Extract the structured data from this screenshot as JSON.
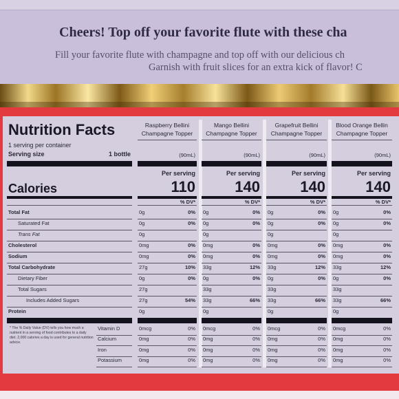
{
  "headline": "Cheers! Top off your favorite flute with these cha",
  "subline1": "Fill your favorite flute with champagne and top off with our delicious ch",
  "subline2": "Garnish with fruit slices for an extra kick of flavor! C",
  "label": {
    "title": "Nutrition Facts",
    "servings_per_container": "1 serving per container",
    "serving_size_label": "Serving size",
    "serving_size_value": "1 bottle",
    "calories_label": "Calories",
    "per_serving": "Per serving",
    "dv_header": "% DV*",
    "nutrients": [
      {
        "name": "Total Fat",
        "bold": true
      },
      {
        "name": "Saturated Fat",
        "bold": false
      },
      {
        "name": "Trans Fat",
        "bold": false
      },
      {
        "name": "Cholesterol",
        "bold": true
      },
      {
        "name": "Sodium",
        "bold": true
      },
      {
        "name": "Total Carbohydrate",
        "bold": true
      },
      {
        "name": "Dietary Fiber",
        "bold": false
      },
      {
        "name": "Total Sugars",
        "bold": false
      },
      {
        "name": "Includes Added Sugars",
        "bold": false
      },
      {
        "name": "Protein",
        "bold": true
      }
    ],
    "footnote": "* The % Daily Value (DV) tells you how much a nutrient in a serving of food contributes to a daily diet. 2,000 calories a day is used for general nutrition advice.",
    "vitamins": [
      "Vitamin D",
      "Calcium",
      "Iron",
      "Potassium"
    ],
    "products": [
      {
        "name1": "Raspberry Bellini",
        "name2": "Champagne Topper",
        "volume": "(90mL)",
        "calories": "110",
        "amounts": [
          "0g",
          "0g",
          "0g",
          "0mg",
          "0mg",
          "27g",
          "0g",
          "27g",
          "27g",
          "0g"
        ],
        "dvs": [
          "0%",
          "0%",
          "",
          "0%",
          "0%",
          "10%",
          "0%",
          "",
          "54%",
          ""
        ],
        "vit_amounts": [
          "0mcg",
          "0mg",
          "0mg",
          "0mg"
        ],
        "vit_dvs": [
          "0%",
          "0%",
          "0%",
          "0%"
        ]
      },
      {
        "name1": "Mango Bellini",
        "name2": "Champagne Topper",
        "volume": "(90mL)",
        "calories": "140",
        "amounts": [
          "0g",
          "0g",
          "0g",
          "0mg",
          "0mg",
          "33g",
          "0g",
          "33g",
          "33g",
          "0g"
        ],
        "dvs": [
          "0%",
          "0%",
          "",
          "0%",
          "0%",
          "12%",
          "0%",
          "",
          "66%",
          ""
        ],
        "vit_amounts": [
          "0mcg",
          "0mg",
          "0mg",
          "0mg"
        ],
        "vit_dvs": [
          "0%",
          "0%",
          "0%",
          "0%"
        ]
      },
      {
        "name1": "Grapefruit Bellini",
        "name2": "Champagne Topper",
        "volume": "(90mL)",
        "calories": "140",
        "amounts": [
          "0g",
          "0g",
          "0g",
          "0mg",
          "0mg",
          "33g",
          "0g",
          "33g",
          "33g",
          "0g"
        ],
        "dvs": [
          "0%",
          "0%",
          "",
          "0%",
          "0%",
          "12%",
          "0%",
          "",
          "66%",
          ""
        ],
        "vit_amounts": [
          "0mcg",
          "0mg",
          "0mg",
          "0mg"
        ],
        "vit_dvs": [
          "0%",
          "0%",
          "0%",
          "0%"
        ]
      },
      {
        "name1": "Blood Orange Bellin",
        "name2": "Champagne Topper",
        "volume": "(90mL)",
        "calories": "140",
        "amounts": [
          "0g",
          "0g",
          "0g",
          "0mg",
          "0mg",
          "33g",
          "0g",
          "33g",
          "33g",
          "0g"
        ],
        "dvs": [
          "0%",
          "0%",
          "",
          "0%",
          "0%",
          "12%",
          "0%",
          "",
          "66%",
          ""
        ],
        "vit_amounts": [
          "0mcg",
          "0mg",
          "0mg",
          "0mg"
        ],
        "vit_dvs": [
          "0%",
          "0%",
          "0%",
          "0%"
        ]
      }
    ]
  },
  "colors": {
    "lavender": "#c9bfdb",
    "red": "#e23a3e",
    "gold": "#e6c66b",
    "panel": "#d4cede",
    "ink": "#14121c"
  }
}
